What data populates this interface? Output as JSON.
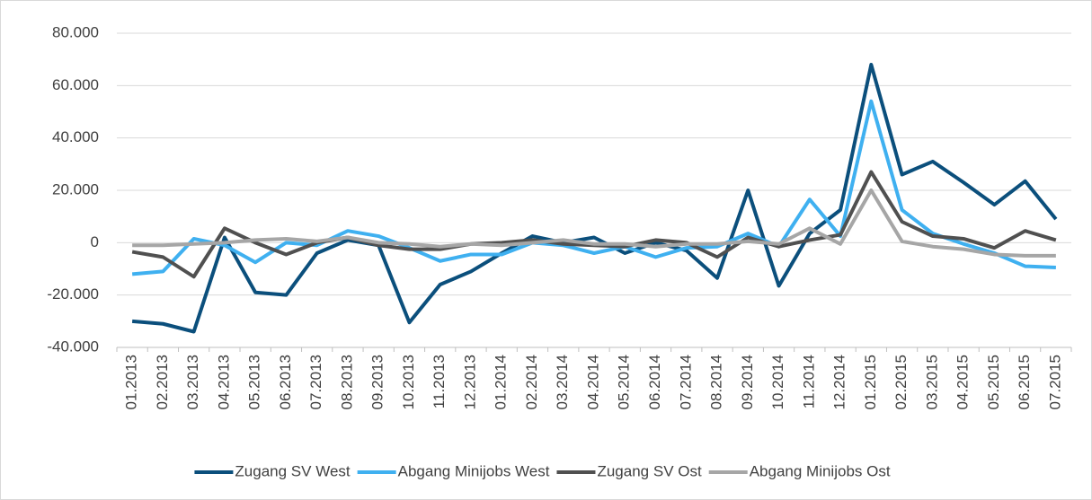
{
  "chart_data": {
    "type": "line",
    "categories": [
      "01.2013",
      "02.2013",
      "03.2013",
      "04.2013",
      "05.2013",
      "06.2013",
      "07.2013",
      "08.2013",
      "09.2013",
      "10.2013",
      "11.2013",
      "12.2013",
      "01.2014",
      "02.2014",
      "03.2014",
      "04.2014",
      "05.2014",
      "06.2014",
      "07.2014",
      "08.2014",
      "09.2014",
      "10.2014",
      "11.2014",
      "12.2014",
      "01.2015",
      "02.2015",
      "03.2015",
      "04.2015",
      "05.2015",
      "06.2015",
      "07.2015"
    ],
    "series": [
      {
        "name": "Zugang SV West",
        "color": "#0b4f7c",
        "values": [
          -30000,
          -31000,
          -34000,
          2000,
          -19000,
          -20000,
          -4000,
          1000,
          -1000,
          -30500,
          -16000,
          -11000,
          -4000,
          2500,
          0,
          2000,
          -4000,
          0,
          -3000,
          -13500,
          20000,
          -16500,
          3500,
          12500,
          68000,
          26000,
          31000,
          23000,
          14500,
          23500,
          9000
        ]
      },
      {
        "name": "Abgang Minijobs West",
        "color": "#3fb0f0",
        "values": [
          -12000,
          -11000,
          1500,
          -1000,
          -7500,
          0,
          -1000,
          4500,
          2500,
          -2000,
          -7000,
          -4500,
          -4500,
          0,
          -1000,
          -4000,
          -1500,
          -5500,
          -2000,
          -1500,
          3500,
          -1500,
          16500,
          2500,
          54000,
          12500,
          3500,
          -500,
          -4000,
          -9000,
          -9500
        ]
      },
      {
        "name": "Zugang SV Ost",
        "color": "#505050",
        "values": [
          -3500,
          -5500,
          -13000,
          5500,
          0,
          -4500,
          0,
          2000,
          -1000,
          -2500,
          -2500,
          -500,
          0,
          1000,
          -500,
          -1000,
          -1500,
          1000,
          0,
          -5500,
          2000,
          -1500,
          1000,
          3000,
          27000,
          8000,
          2500,
          1500,
          -2000,
          4500,
          1000
        ]
      },
      {
        "name": "Abgang Minijobs Ost",
        "color": "#a6a6a6",
        "values": [
          -1000,
          -1000,
          -500,
          0,
          1000,
          1500,
          500,
          2000,
          0,
          -500,
          -1500,
          -500,
          -1000,
          0,
          1000,
          -500,
          -500,
          -1500,
          -500,
          -500,
          500,
          -500,
          5500,
          -500,
          20000,
          500,
          -1500,
          -2500,
          -4500,
          -5000,
          -5000
        ]
      }
    ],
    "ylim": [
      -40000,
      80000
    ],
    "yticks": [
      {
        "value": -40000,
        "label": "-40.000"
      },
      {
        "value": -20000,
        "label": "-20.000"
      },
      0,
      {
        "value": 20000,
        "label": "20.000"
      },
      {
        "value": 40000,
        "label": "40.000"
      },
      {
        "value": 60000,
        "label": "60.000"
      },
      {
        "value": 80000,
        "label": "80.000"
      }
    ],
    "grid": true,
    "legend": "bottom"
  }
}
